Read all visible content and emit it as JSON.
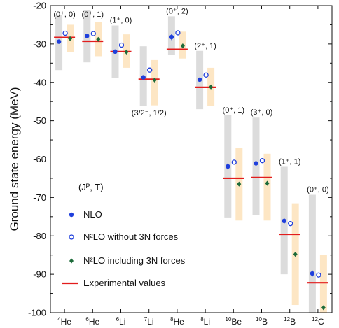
{
  "chart_data": {
    "type": "scatter",
    "ylabel": "Ground state energy (MeV)",
    "ylim": [
      -100,
      -20
    ],
    "yticks": [
      "-20",
      "-30",
      "-40",
      "-50",
      "-60",
      "-70",
      "-80",
      "-90",
      "-100"
    ],
    "ytick_values": [
      -20,
      -30,
      -40,
      -50,
      -60,
      -70,
      -80,
      -90,
      -100
    ],
    "categories": [
      {
        "mass": "4",
        "element": "He"
      },
      {
        "mass": "6",
        "element": "He"
      },
      {
        "mass": "6",
        "element": "Li"
      },
      {
        "mass": "7",
        "element": "Li"
      },
      {
        "mass": "8",
        "element": "He"
      },
      {
        "mass": "8",
        "element": "Li"
      },
      {
        "mass": "10",
        "element": "Be"
      },
      {
        "mass": "10",
        "element": "B"
      },
      {
        "mass": "12",
        "element": "B"
      },
      {
        "mass": "12",
        "element": "C"
      }
    ],
    "quantum_numbers": [
      "(0⁺, 0)",
      "(0⁺, 1)",
      "(1⁺, 0)",
      "(3/2⁻, 1/2)",
      "(0⁺, 2)",
      "(2⁺, 1)",
      "(0⁺, 1)",
      "(3⁺, 0)",
      "(1⁺, 1)",
      "(0⁺, 0)"
    ],
    "quantum_number_legend": "(Jᴾ, T)",
    "series": [
      {
        "name": "NLO",
        "color": "#1f3fdc",
        "marker": "filled-circle",
        "values": [
          -29.4,
          -27.9,
          -32.0,
          -38.7,
          -28.2,
          -39.3,
          -61.9,
          -61.1,
          -76.1,
          -89.8
        ],
        "errors": [
          0.5,
          0.5,
          0.5,
          0.5,
          0.8,
          0.5,
          0.8,
          0.8,
          0.8,
          0.8
        ],
        "band": [
          [
            -36.8,
            -22.4
          ],
          [
            -34.8,
            -21.2
          ],
          [
            -38.8,
            -25.2
          ],
          [
            -46.2,
            -30.6
          ],
          [
            -32.8,
            -22.8
          ],
          [
            -47.0,
            -31.8
          ],
          [
            -75.2,
            -48.6
          ],
          [
            -74.5,
            -49.2
          ],
          [
            -90.0,
            -62.0
          ],
          [
            -100.0,
            -69.3
          ]
        ],
        "band_color": "#dcdcdc"
      },
      {
        "name": "N²LO without 3N forces",
        "color": "#1f3fdc",
        "marker": "open-circle",
        "values": [
          -27.2,
          -27.3,
          -30.3,
          -36.8,
          -27.1,
          -38.1,
          -60.8,
          -60.4,
          -76.8,
          -90.2
        ],
        "errors": [
          0.4,
          0.4,
          0.4,
          0.4,
          0.6,
          0.4,
          0.6,
          0.6,
          0.6,
          0.6
        ]
      },
      {
        "name": "N²LO including 3N forces",
        "color": "#1d6b3a",
        "marker": "diamond",
        "values": [
          -28.6,
          -28.8,
          -32.1,
          -39.4,
          -30.5,
          -41.2,
          -66.5,
          -66.3,
          -84.8,
          -98.7
        ],
        "errors": [
          0.3,
          0.3,
          0.3,
          0.3,
          0.4,
          0.3,
          0.5,
          0.5,
          0.5,
          0.5
        ],
        "band": [
          [
            -32.2,
            -25.0
          ],
          [
            -33.2,
            -24.2
          ],
          [
            -36.2,
            -27.5
          ],
          [
            -46.0,
            -34.2
          ],
          [
            -33.8,
            -26.8
          ],
          [
            -46.2,
            -36.2
          ],
          [
            -76.0,
            -57.0
          ],
          [
            -76.0,
            -58.6
          ],
          [
            -98.0,
            -71.5
          ],
          [
            -100.0,
            -85.0
          ]
        ],
        "band_color": "#fde6c4"
      },
      {
        "name": "Experimental values",
        "color": "#e21d1d",
        "marker": "line",
        "values": [
          -28.3,
          -29.3,
          -32.0,
          -39.2,
          -31.4,
          -41.3,
          -65.0,
          -64.8,
          -79.6,
          -92.2
        ]
      }
    ]
  }
}
